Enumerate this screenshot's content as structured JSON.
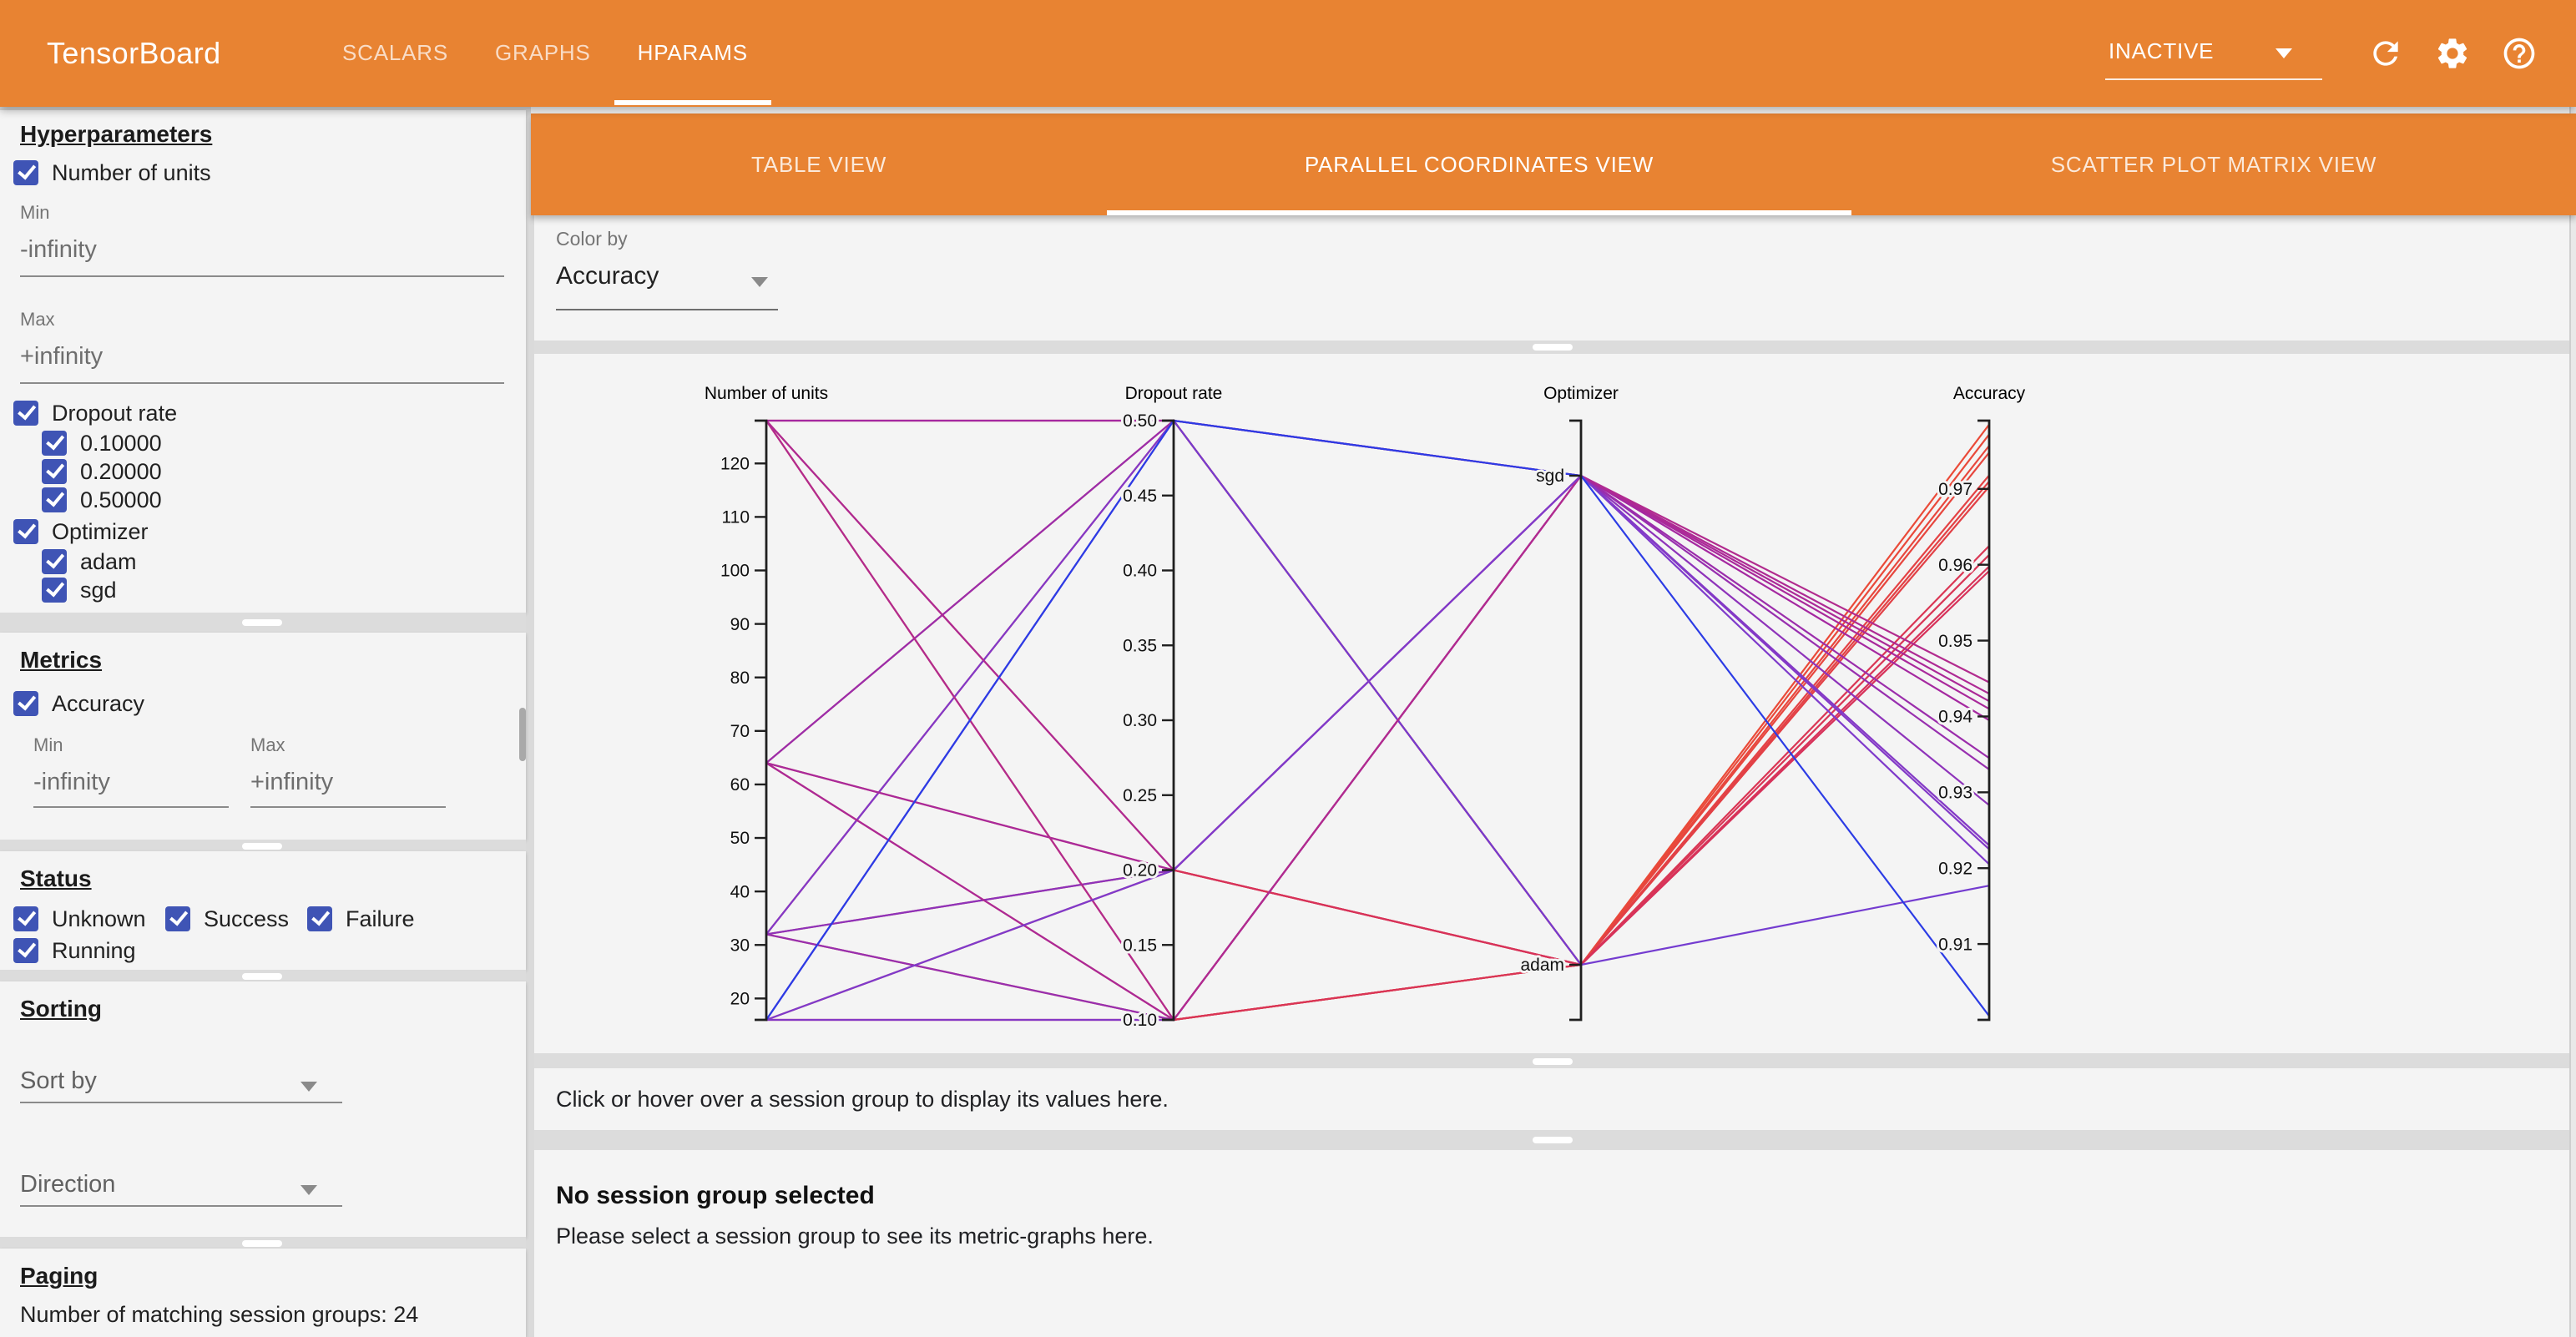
{
  "colors": {
    "accent_orange": "#e88332",
    "checkbox_blue": "#3f54b5",
    "card_background": "#f4f4f4"
  },
  "header": {
    "title": "TensorBoard",
    "nav_tabs": [
      {
        "label": "SCALARS",
        "active": false
      },
      {
        "label": "GRAPHS",
        "active": false
      },
      {
        "label": "HPARAMS",
        "active": true
      }
    ],
    "status_dropdown": {
      "value": "INACTIVE"
    }
  },
  "sidebar": {
    "hyperparameters": {
      "heading": "Hyperparameters",
      "number_of_units": {
        "label": "Number of units",
        "checked": true,
        "min": {
          "label": "Min",
          "value": "-infinity"
        },
        "max": {
          "label": "Max",
          "value": "+infinity"
        }
      },
      "dropout_rate": {
        "label": "Dropout rate",
        "checked": true,
        "options": [
          {
            "label": "0.10000",
            "checked": true
          },
          {
            "label": "0.20000",
            "checked": true
          },
          {
            "label": "0.50000",
            "checked": true
          }
        ]
      },
      "optimizer": {
        "label": "Optimizer",
        "checked": true,
        "options": [
          {
            "label": "adam",
            "checked": true
          },
          {
            "label": "sgd",
            "checked": true
          }
        ]
      }
    },
    "metrics": {
      "heading": "Metrics",
      "accuracy": {
        "label": "Accuracy",
        "checked": true
      },
      "min": {
        "label": "Min",
        "value": "-infinity"
      },
      "max": {
        "label": "Max",
        "value": "+infinity"
      }
    },
    "status": {
      "heading": "Status",
      "options": [
        {
          "label": "Unknown",
          "checked": true
        },
        {
          "label": "Success",
          "checked": true
        },
        {
          "label": "Failure",
          "checked": true
        },
        {
          "label": "Running",
          "checked": true
        }
      ]
    },
    "sorting": {
      "heading": "Sorting",
      "sort_by_placeholder": "Sort by",
      "direction_placeholder": "Direction"
    },
    "paging": {
      "heading": "Paging",
      "summary": "Number of matching session groups: 24"
    }
  },
  "main": {
    "view_tabs": [
      {
        "label": "TABLE VIEW",
        "active": false
      },
      {
        "label": "PARALLEL COORDINATES VIEW",
        "active": true
      },
      {
        "label": "SCATTER PLOT MATRIX VIEW",
        "active": false
      }
    ],
    "color_by": {
      "label": "Color by",
      "value": "Accuracy"
    },
    "info_bar": "Click or hover over a session group to display its values here.",
    "session_panel": {
      "title": "No session group selected",
      "subtitle": "Please select a session group to see its metric-graphs here."
    }
  },
  "chart_data": {
    "type": "parallel-coordinates",
    "color_by": "Accuracy",
    "axes": [
      {
        "key": "units",
        "label": "Number of units",
        "scale": "linear",
        "domain": [
          16,
          128
        ],
        "ticks": [
          20,
          30,
          40,
          50,
          60,
          70,
          80,
          90,
          100,
          110,
          120
        ],
        "tick_format": "int"
      },
      {
        "key": "dropout",
        "label": "Dropout rate",
        "scale": "linear",
        "domain": [
          0.1,
          0.5
        ],
        "ticks": [
          0.1,
          0.15,
          0.2,
          0.25,
          0.3,
          0.35,
          0.4,
          0.45,
          0.5
        ],
        "tick_format": "2f"
      },
      {
        "key": "optimizer",
        "label": "Optimizer",
        "scale": "point",
        "categories": [
          "adam",
          "sgd"
        ]
      },
      {
        "key": "accuracy",
        "label": "Accuracy",
        "scale": "linear",
        "domain": [
          0.9,
          0.979
        ],
        "ticks": [
          0.91,
          0.92,
          0.93,
          0.94,
          0.95,
          0.96,
          0.97
        ],
        "tick_format": "2f"
      }
    ],
    "color_scale": {
      "domain": [
        0.9,
        0.979
      ],
      "stops": [
        "#2a3ce6",
        "#7d3ccd",
        "#a528a0",
        "#d7325a",
        "#eb4b37"
      ]
    },
    "sessions": [
      {
        "units": 128,
        "dropout": 0.1,
        "optimizer": "adam",
        "accuracy": 0.9785
      },
      {
        "units": 128,
        "dropout": 0.2,
        "optimizer": "adam",
        "accuracy": 0.9772
      },
      {
        "units": 64,
        "dropout": 0.1,
        "optimizer": "adam",
        "accuracy": 0.9757
      },
      {
        "units": 64,
        "dropout": 0.2,
        "optimizer": "adam",
        "accuracy": 0.9748
      },
      {
        "units": 128,
        "dropout": 0.5,
        "optimizer": "adam",
        "accuracy": 0.9718
      },
      {
        "units": 64,
        "dropout": 0.5,
        "optimizer": "adam",
        "accuracy": 0.971
      },
      {
        "units": 32,
        "dropout": 0.1,
        "optimizer": "adam",
        "accuracy": 0.9703
      },
      {
        "units": 32,
        "dropout": 0.2,
        "optimizer": "adam",
        "accuracy": 0.9625
      },
      {
        "units": 16,
        "dropout": 0.1,
        "optimizer": "adam",
        "accuracy": 0.9613
      },
      {
        "units": 32,
        "dropout": 0.5,
        "optimizer": "adam",
        "accuracy": 0.9598
      },
      {
        "units": 16,
        "dropout": 0.2,
        "optimizer": "adam",
        "accuracy": 0.9592
      },
      {
        "units": 16,
        "dropout": 0.5,
        "optimizer": "adam",
        "accuracy": 0.9177
      },
      {
        "units": 16,
        "dropout": 0.1,
        "optimizer": "sgd",
        "accuracy": 0.923
      },
      {
        "units": 32,
        "dropout": 0.2,
        "optimizer": "sgd",
        "accuracy": 0.9283
      },
      {
        "units": 32,
        "dropout": 0.5,
        "optimizer": "sgd",
        "accuracy": 0.9225
      },
      {
        "units": 32,
        "dropout": 0.1,
        "optimizer": "sgd",
        "accuracy": 0.933
      },
      {
        "units": 64,
        "dropout": 0.2,
        "optimizer": "sgd",
        "accuracy": 0.941
      },
      {
        "units": 64,
        "dropout": 0.5,
        "optimizer": "sgd",
        "accuracy": 0.9345
      },
      {
        "units": 128,
        "dropout": 0.5,
        "optimizer": "sgd",
        "accuracy": 0.9395
      },
      {
        "units": 64,
        "dropout": 0.1,
        "optimizer": "sgd",
        "accuracy": 0.942
      },
      {
        "units": 128,
        "dropout": 0.1,
        "optimizer": "sgd",
        "accuracy": 0.9445
      },
      {
        "units": 128,
        "dropout": 0.2,
        "optimizer": "sgd",
        "accuracy": 0.943
      },
      {
        "units": 16,
        "dropout": 0.2,
        "optimizer": "sgd",
        "accuracy": 0.9205
      },
      {
        "units": 16,
        "dropout": 0.5,
        "optimizer": "sgd",
        "accuracy": 0.9005
      }
    ]
  }
}
